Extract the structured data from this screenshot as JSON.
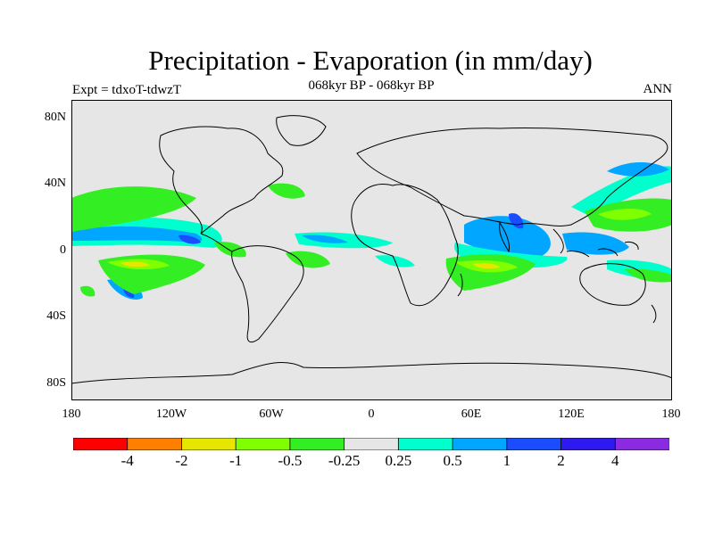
{
  "title": "Precipitation - Evaporation (in mm/day)",
  "subtitle": "068kyr BP - 068kyr BP",
  "experiment": "Expt = tdxoT-tdwzT",
  "season": "ANN",
  "lat_ticks": [
    "80N",
    "40N",
    "0",
    "40S",
    "80S"
  ],
  "lon_ticks": [
    "180",
    "120W",
    "60W",
    "0",
    "60E",
    "120E",
    "180"
  ],
  "colorbar": {
    "labels": [
      "-4",
      "-2",
      "-1",
      "-0.5",
      "-0.25",
      "0.25",
      "0.5",
      "1",
      "2",
      "4"
    ],
    "colors": [
      "#ff0000",
      "#ff8000",
      "#e6e600",
      "#80ff00",
      "#33ee22",
      "#e6e6e6",
      "#00ffcc",
      "#00a6ff",
      "#1a4dff",
      "#2e1aee",
      "#8a2be2"
    ]
  },
  "colors": {
    "ocean_land_background": "#e6e6e6",
    "coastline": "#000000"
  }
}
